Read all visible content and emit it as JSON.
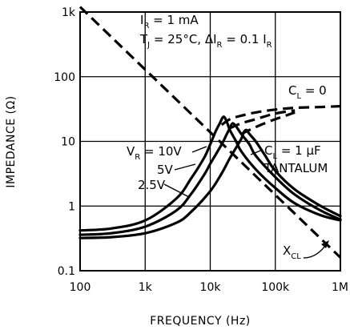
{
  "chart_data": {
    "type": "line",
    "title": "",
    "xlabel": "FREQUENCY (Hz)",
    "ylabel": "IMPEDANCE (Ω)",
    "x_scale": "log",
    "y_scale": "log",
    "xlim": [
      100,
      1000000
    ],
    "ylim": [
      0.1,
      1000
    ],
    "x_ticks": [
      "100",
      "1k",
      "10k",
      "100k",
      "1M"
    ],
    "y_ticks": [
      "1k",
      "100",
      "10",
      "1",
      "0.1"
    ],
    "grid": true,
    "conditions": {
      "line1": {
        "main": "I",
        "sub": "R",
        "rest": " = 1 mA"
      },
      "line2": {
        "main": "T",
        "sub": "J",
        "mid": " = 25°C, ΔI",
        "sub2": "R",
        "rest": " = 0.1 I",
        "sub3": "R"
      }
    },
    "annotations": {
      "cl0": {
        "main": "C",
        "sub": "L",
        "rest": " = 0"
      },
      "cl1": {
        "main": "C",
        "sub": "L",
        "rest": " = 1 μF"
      },
      "tantalum": "TANTALUM",
      "vr10": {
        "main": "V",
        "sub": "R",
        "rest": " = 10V"
      },
      "v5": "5V",
      "v25": "2.5V",
      "xcl": {
        "main": "X",
        "sub": "CL"
      }
    },
    "series": [
      {
        "name": "XCL",
        "style": "dashed",
        "x": [
          100,
          1000000
        ],
        "y": [
          1200,
          0.16
        ]
      },
      {
        "name": "CL = 0, VR = 10V",
        "style": "dashed",
        "x": [
          15000,
          20000,
          30000,
          50000,
          100000,
          200000,
          500000,
          1000000
        ],
        "y": [
          18,
          22,
          25,
          28,
          31,
          33,
          34,
          35
        ]
      },
      {
        "name": "CL = 0, VR = 5V",
        "style": "dashed",
        "x": [
          20000,
          30000,
          50000,
          100000,
          200000
        ],
        "y": [
          16,
          19,
          22,
          27,
          30
        ]
      },
      {
        "name": "CL = 0, VR = 2.5V",
        "style": "dashed",
        "x": [
          30000,
          40000,
          60000,
          100000,
          200000
        ],
        "y": [
          13,
          15,
          18,
          22,
          28
        ]
      },
      {
        "name": "VR = 10V",
        "x": [
          100,
          300,
          1000,
          3000,
          5000,
          8000,
          10000,
          12000,
          14000,
          16000,
          18000,
          20000,
          25000,
          30000,
          50000,
          100000,
          200000,
          500000,
          1000000
        ],
        "y": [
          0.42,
          0.45,
          0.6,
          1.3,
          2.6,
          5.5,
          9,
          14,
          19,
          24,
          20,
          15,
          10,
          7,
          3.7,
          1.9,
          1.1,
          0.72,
          0.6
        ]
      },
      {
        "name": "VR = 5V",
        "x": [
          100,
          300,
          1000,
          3000,
          5000,
          8000,
          10000,
          15000,
          18000,
          20000,
          22000,
          25000,
          30000,
          40000,
          50000,
          100000,
          200000,
          500000,
          1000000
        ],
        "y": [
          0.36,
          0.38,
          0.48,
          0.85,
          1.5,
          3,
          4.5,
          9,
          13,
          16,
          19,
          17,
          13,
          9,
          6,
          2.8,
          1.5,
          0.85,
          0.62
        ]
      },
      {
        "name": "VR = 2.5V",
        "x": [
          100,
          300,
          1000,
          3000,
          5000,
          10000,
          15000,
          20000,
          25000,
          30000,
          33000,
          36000,
          40000,
          50000,
          70000,
          100000,
          200000,
          500000,
          1000000
        ],
        "y": [
          0.32,
          0.33,
          0.38,
          0.55,
          0.8,
          1.7,
          3.2,
          5.5,
          8,
          11,
          14,
          15,
          13,
          10,
          6,
          3.5,
          1.8,
          1,
          0.7
        ]
      }
    ]
  }
}
